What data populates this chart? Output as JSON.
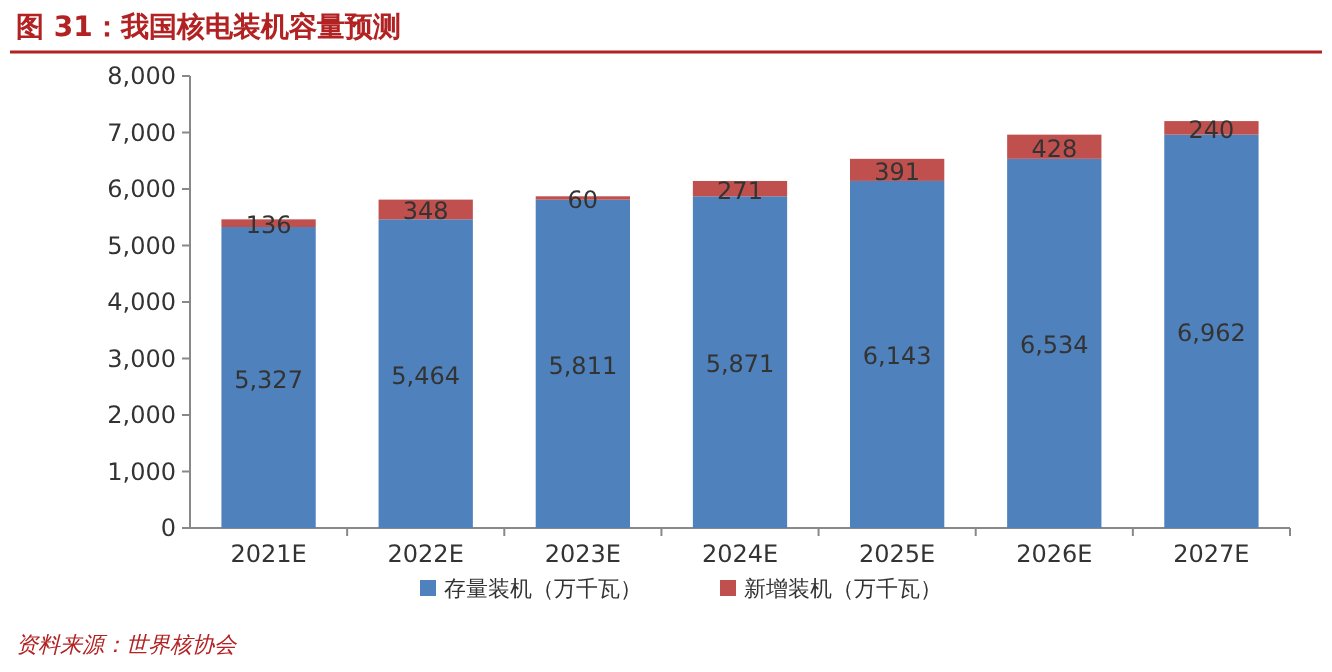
{
  "chart_data": {
    "type": "bar",
    "title": "图 31：我国核电装机容量预测",
    "categories": [
      "2021E",
      "2022E",
      "2023E",
      "2024E",
      "2025E",
      "2026E",
      "2027E"
    ],
    "stacked": true,
    "legend": "bottom",
    "grid": false,
    "series": [
      {
        "name": "存量装机（万千瓦）",
        "color": "#4f81bd",
        "values": [
          5327,
          5464,
          5811,
          5871,
          6143,
          6534,
          6962
        ],
        "value_labels": [
          "5,327",
          "5,464",
          "5,811",
          "5,871",
          "6,143",
          "6,534",
          "6,962"
        ]
      },
      {
        "name": "新增装机（万千瓦）",
        "color": "#c0504d",
        "values": [
          136,
          348,
          60,
          271,
          391,
          428,
          240
        ],
        "value_labels": [
          "136",
          "348",
          "60",
          "271",
          "391",
          "428",
          "240"
        ]
      }
    ],
    "ylim": [
      0,
      8000
    ],
    "yticks": [
      0,
      {
        "value": 1000,
        "label": "1,000"
      },
      {
        "value": 2000,
        "label": "2,000"
      },
      {
        "value": 3000,
        "label": "3,000"
      },
      {
        "value": 4000,
        "label": "4,000"
      },
      {
        "value": 5000,
        "label": "5,000"
      },
      {
        "value": 6000,
        "label": "6,000"
      },
      {
        "value": 7000,
        "label": "7,000"
      },
      {
        "value": 8000,
        "label": "8,000"
      }
    ],
    "annotations": [
      "资料来源：世界核协会"
    ]
  }
}
